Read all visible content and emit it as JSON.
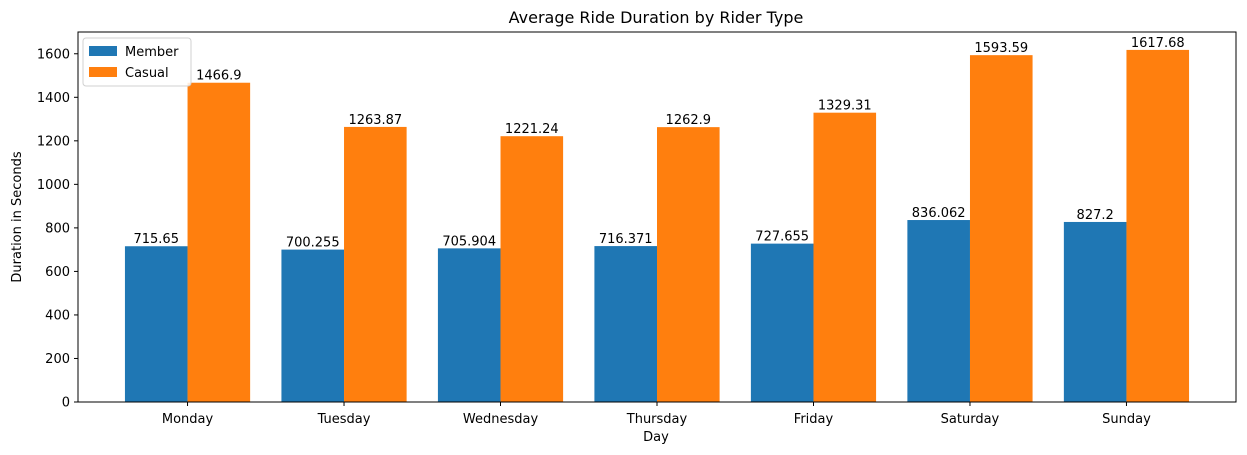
{
  "chart_data": {
    "type": "bar",
    "title": "Average Ride Duration by Rider Type",
    "xlabel": "Day",
    "ylabel": "Duration in Seconds",
    "categories": [
      "Monday",
      "Tuesday",
      "Wednesday",
      "Thursday",
      "Friday",
      "Saturday",
      "Sunday"
    ],
    "series": [
      {
        "name": "Member",
        "color": "#1f77b4",
        "values": [
          715.65,
          700.255,
          705.904,
          716.371,
          727.655,
          836.062,
          827.2
        ],
        "labels": [
          "715.65",
          "700.255",
          "705.904",
          "716.371",
          "727.655",
          "836.062",
          "827.2"
        ]
      },
      {
        "name": "Casual",
        "color": "#ff7f0e",
        "values": [
          1466.9,
          1263.87,
          1221.24,
          1262.9,
          1329.31,
          1593.59,
          1617.68
        ],
        "labels": [
          "1466.9",
          "1263.87",
          "1221.24",
          "1262.9",
          "1329.31",
          "1593.59",
          "1617.68"
        ]
      }
    ],
    "ylim": [
      0,
      1700
    ],
    "yticks": [
      0,
      200,
      400,
      600,
      800,
      1000,
      1200,
      1400,
      1600
    ],
    "grid": false,
    "legend": {
      "position": "top-left"
    }
  }
}
